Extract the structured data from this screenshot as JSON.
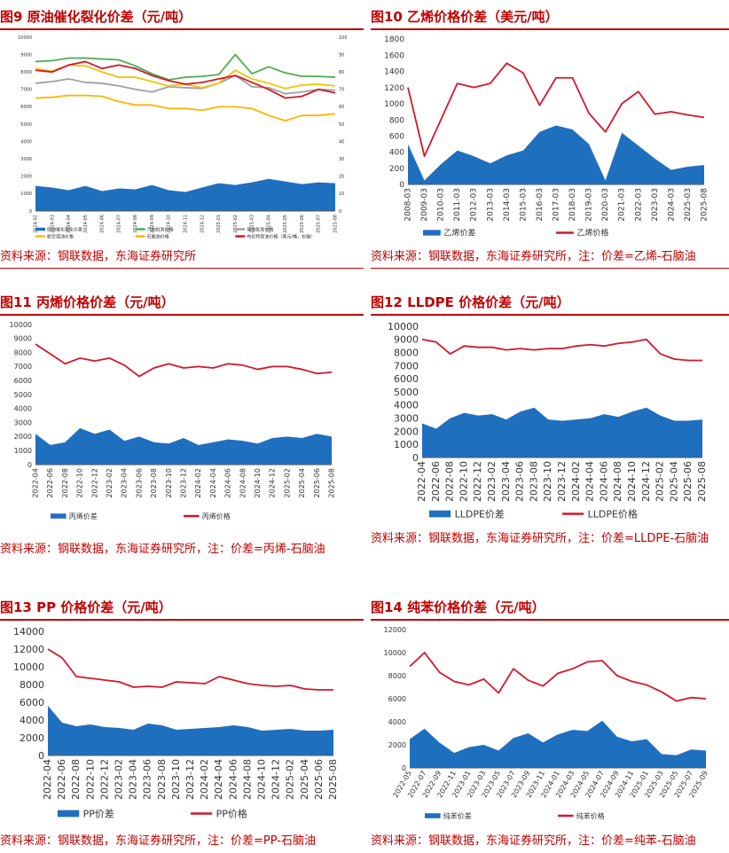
{
  "colors": {
    "red": "#c00000",
    "line": "#d2182a",
    "area": "#1f6fbf",
    "green": "#4caf50",
    "gray": "#a0a0a0",
    "yellow": "#f5c400",
    "gold": "#ffb300",
    "axis": "#555555",
    "text": "#333333"
  },
  "panels": [
    {
      "title": "图9  原油催化裂化价差（元/吨）",
      "source": "资料来源：钢联数据，东海证券研究所",
      "chart_data": {
        "type": "area+line",
        "x": [
          "2024-02",
          "2024-03",
          "2024-04",
          "2024-05",
          "2024-06",
          "2024-07",
          "2024-08",
          "2024-09",
          "2024-10",
          "2024-11",
          "2024-12",
          "2025-01",
          "2025-02",
          "2025-03",
          "2025-04",
          "2025-05",
          "2025-06",
          "2025-07",
          "2025-08"
        ],
        "ylim_left": [
          0,
          10000
        ],
        "yticks_left": [
          "0",
          "1000",
          "2000",
          "3000",
          "4000",
          "5000",
          "6000",
          "7000",
          "8000",
          "9000",
          "10000"
        ],
        "ylim_right": [
          0,
          100
        ],
        "yticks_right": [
          "0",
          "10",
          "20",
          "30",
          "40",
          "50",
          "60",
          "70",
          "80",
          "90",
          "100"
        ],
        "tick_every": 1,
        "area_series": {
          "name": "原油催化裂化价差",
          "values": [
            1450,
            1350,
            1200,
            1450,
            1150,
            1300,
            1250,
            1500,
            1200,
            1100,
            1350,
            1600,
            1500,
            1650,
            1850,
            1700,
            1550,
            1650,
            1600
          ]
        },
        "line_series": [
          {
            "name": "汽油批发价格",
            "color": "green",
            "values": [
              8600,
              8650,
              8800,
              8800,
              8750,
              8700,
              8350,
              7900,
              7550,
              7700,
              7750,
              7850,
              9000,
              7900,
              8300,
              7950,
              7750,
              7750,
              7700
            ]
          },
          {
            "name": "柴油批发价格",
            "color": "gray",
            "values": [
              7350,
              7450,
              7600,
              7400,
              7350,
              7200,
              7000,
              6850,
              7150,
              7100,
              7050,
              7350,
              7800,
              7150,
              7100,
              6750,
              6850,
              7000,
              6950
            ]
          },
          {
            "name": "航空煤油价格",
            "color": "yellow",
            "values": [
              8200,
              8050,
              8400,
              8350,
              8000,
              7700,
              7700,
              7450,
              7200,
              7300,
              7100,
              7350,
              8100,
              7600,
              7350,
              7050,
              7250,
              7300,
              7200
            ]
          },
          {
            "name": "石脑油价格",
            "color": "gold",
            "values": [
              6500,
              6550,
              6650,
              6650,
              6600,
              6300,
              6100,
              6100,
              5900,
              5900,
              5800,
              6000,
              6000,
              5900,
              5500,
              5200,
              5500,
              5500,
              5600
            ]
          },
          {
            "name": "布伦特原油价格（美元/桶，右轴）",
            "color": "line",
            "axis": "right",
            "values": [
              81,
              80,
              84,
              86,
              82,
              84,
              82,
              78,
              75,
              73,
              74,
              76,
              78,
              74,
              70,
              65,
              66,
              70,
              68
            ]
          }
        ],
        "legend": "bottom"
      }
    },
    {
      "title": "图10  乙烯价格价差（美元/吨）",
      "source": "资料来源：钢联数据，东海证券研究所，注：价差=乙烯-石脑油",
      "chart_data": {
        "type": "area+line",
        "x": [
          "2008-03",
          "2009-03",
          "2010-03",
          "2011-03",
          "2012-03",
          "2013-03",
          "2014-03",
          "2015-03",
          "2016-03",
          "2017-03",
          "2018-03",
          "2019-03",
          "2020-03",
          "2021-03",
          "2022-03",
          "2023-03",
          "2024-03",
          "2025-03",
          "2025-08"
        ],
        "ylim_left": [
          0,
          1800
        ],
        "yticks_left": [
          "0",
          "200",
          "400",
          "600",
          "800",
          "1000",
          "1200",
          "1400",
          "1600",
          "1800"
        ],
        "tick_every": 1,
        "area_series": {
          "name": "乙烯价差",
          "values": [
            500,
            50,
            250,
            420,
            350,
            260,
            360,
            420,
            650,
            730,
            680,
            500,
            50,
            640,
            480,
            320,
            180,
            220,
            240
          ]
        },
        "line_series": [
          {
            "name": "乙烯价格",
            "color": "line",
            "values": [
              1200,
              350,
              800,
              1250,
              1200,
              1250,
              1500,
              1380,
              980,
              1320,
              1320,
              880,
              650,
              1000,
              1150,
              870,
              900,
              860,
              830
            ]
          }
        ],
        "legend": "bottom"
      }
    },
    {
      "title": "图11  丙烯价格价差（元/吨）",
      "source": "资料来源：钢联数据，东海证券研究所，注：价差=丙烯-石脑油",
      "chart_data": {
        "type": "area+line",
        "x": [
          "2022-04",
          "2022-06",
          "2022-08",
          "2022-10",
          "2022-12",
          "2023-02",
          "2023-04",
          "2023-06",
          "2023-08",
          "2023-10",
          "2023-12",
          "2024-02",
          "2024-04",
          "2024-06",
          "2024-08",
          "2024-10",
          "2024-12",
          "2025-02",
          "2025-04",
          "2025-06",
          "2025-08"
        ],
        "ylim_left": [
          0,
          10000
        ],
        "yticks_left": [
          "0",
          "1000",
          "2000",
          "3000",
          "4000",
          "5000",
          "6000",
          "7000",
          "8000",
          "9000",
          "10000"
        ],
        "tick_every": 1,
        "area_series": {
          "name": "丙烯价差",
          "values": [
            2200,
            1400,
            1600,
            2600,
            2200,
            2500,
            1700,
            2000,
            1600,
            1500,
            1900,
            1400,
            1600,
            1800,
            1700,
            1500,
            1900,
            2000,
            1900,
            2200,
            2000
          ]
        },
        "line_series": [
          {
            "name": "丙烯价格",
            "color": "line",
            "values": [
              8600,
              7900,
              7200,
              7600,
              7400,
              7600,
              7100,
              6300,
              6900,
              7200,
              6900,
              7000,
              6900,
              7200,
              7100,
              6800,
              7000,
              7000,
              6800,
              6500,
              6600
            ]
          }
        ],
        "legend": "bottom"
      }
    },
    {
      "title": "图12  LLDPE 价格价差（元/吨）",
      "source": "资料来源：钢联数据，东海证券研究所，注：价差=LLDPE-石脑油",
      "chart_data": {
        "type": "area+line",
        "x": [
          "2022-04",
          "2022-06",
          "2022-08",
          "2022-10",
          "2022-12",
          "2023-02",
          "2023-04",
          "2023-06",
          "2023-08",
          "2023-10",
          "2023-12",
          "2024-02",
          "2024-04",
          "2024-06",
          "2024-08",
          "2024-10",
          "2024-12",
          "2025-02",
          "2025-04",
          "2025-06",
          "2025-08"
        ],
        "ylim_left": [
          0,
          10000
        ],
        "yticks_left": [
          "0",
          "1000",
          "2000",
          "3000",
          "4000",
          "5000",
          "6000",
          "7000",
          "8000",
          "9000",
          "10000"
        ],
        "tick_every": 1,
        "area_series": {
          "name": "LLDPE价差",
          "values": [
            2600,
            2200,
            3000,
            3400,
            3200,
            3300,
            2900,
            3500,
            3800,
            2900,
            2800,
            2900,
            3000,
            3300,
            3100,
            3500,
            3800,
            3200,
            2800,
            2800,
            2900
          ]
        },
        "line_series": [
          {
            "name": "LLDPE价格",
            "color": "line",
            "values": [
              9000,
              8800,
              7900,
              8500,
              8400,
              8400,
              8200,
              8300,
              8200,
              8300,
              8300,
              8500,
              8600,
              8500,
              8700,
              8800,
              9000,
              7900,
              7500,
              7400,
              7400
            ]
          }
        ],
        "legend": "bottom"
      }
    },
    {
      "title": "图13  PP 价格价差（元/吨）",
      "source": "资料来源：钢联数据，东海证券研究所，注：价差=PP-石脑油",
      "chart_data": {
        "type": "area+line",
        "x": [
          "2022-04",
          "2022-06",
          "2022-08",
          "2022-10",
          "2022-12",
          "2023-02",
          "2023-04",
          "2023-06",
          "2023-08",
          "2023-10",
          "2023-12",
          "2024-02",
          "2024-04",
          "2024-06",
          "2024-08",
          "2024-10",
          "2024-12",
          "2025-02",
          "2025-04",
          "2025-06",
          "2025-08"
        ],
        "ylim_left": [
          0,
          14000
        ],
        "yticks_left": [
          "0",
          "2000",
          "4000",
          "6000",
          "8000",
          "10000",
          "12000",
          "14000"
        ],
        "tick_every": 1,
        "area_series": {
          "name": "PP价差",
          "values": [
            5600,
            3700,
            3300,
            3500,
            3200,
            3100,
            2900,
            3600,
            3400,
            2900,
            3000,
            3100,
            3200,
            3400,
            3200,
            2800,
            2900,
            3000,
            2800,
            2800,
            2900
          ]
        },
        "line_series": [
          {
            "name": "PP价格",
            "color": "line",
            "values": [
              12000,
              11000,
              8900,
              8700,
              8500,
              8300,
              7700,
              7800,
              7700,
              8300,
              8200,
              8100,
              8900,
              8500,
              8100,
              7900,
              7800,
              7900,
              7500,
              7400,
              7400
            ]
          }
        ],
        "legend": "bottom"
      }
    },
    {
      "title": "图14  纯苯价格价差（元/吨）",
      "source": "资料来源：钢联数据，东海证券研究所，注：价差=纯苯-石脑油",
      "chart_data": {
        "type": "area+line",
        "x": [
          "2022-05",
          "2022-07",
          "2022-09",
          "2022-11",
          "2023-01",
          "2023-03",
          "2023-05",
          "2023-07",
          "2023-09",
          "2023-11",
          "2024-01",
          "2024-03",
          "2024-05",
          "2024-07",
          "2024-09",
          "2024-11",
          "2025-01",
          "2025-03",
          "2025-05",
          "2025-07",
          "2025-09"
        ],
        "ylim_left": [
          0,
          12000
        ],
        "yticks_left": [
          "0",
          "2000",
          "4000",
          "6000",
          "8000",
          "10000",
          "12000"
        ],
        "tick_every": 1,
        "area_series": {
          "name": "纯苯价差",
          "values": [
            2500,
            3400,
            2200,
            1300,
            1800,
            2000,
            1500,
            2600,
            3000,
            2200,
            2900,
            3300,
            3200,
            4100,
            2700,
            2300,
            2500,
            1200,
            1100,
            1600,
            1500
          ]
        },
        "line_series": [
          {
            "name": "纯苯价格",
            "color": "line",
            "values": [
              8800,
              10000,
              8300,
              7500,
              7200,
              7700,
              6500,
              8600,
              7600,
              7100,
              8200,
              8600,
              9200,
              9300,
              8000,
              7500,
              7200,
              6600,
              5800,
              6100,
              6000
            ]
          }
        ],
        "legend": "bottom"
      }
    }
  ]
}
